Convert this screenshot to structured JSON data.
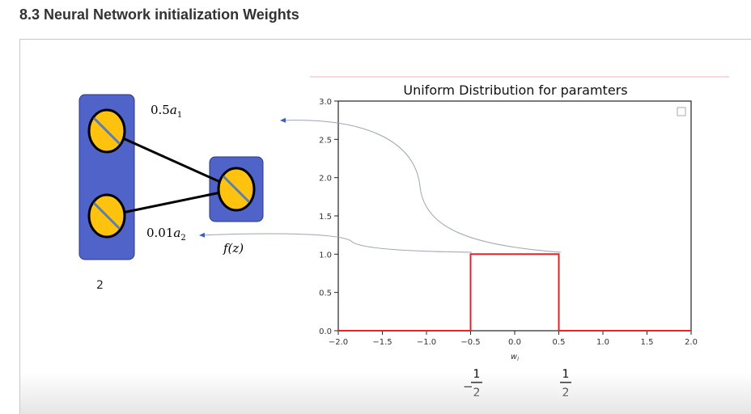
{
  "page": {
    "title": "8.3 Neural Network initialization Weights"
  },
  "network": {
    "input_count_label": "2",
    "edge_labels": [
      {
        "coef": "0.5",
        "var": "a",
        "sub": "1"
      },
      {
        "coef": "0.01",
        "var": "a",
        "sub": "2"
      }
    ],
    "output_label": "f(z)"
  },
  "chart_data": {
    "type": "line",
    "title": "Uniform Distribution for paramters",
    "xlabel": "w",
    "xlabel_subscript": "i",
    "ylabel": "",
    "xlim": [
      -2.0,
      2.0
    ],
    "ylim": [
      0.0,
      3.0
    ],
    "xticks": [
      "−2.0",
      "−1.5",
      "−1.0",
      "−0.5",
      "0.0",
      "0.5",
      "1.0",
      "1.5",
      "2.0"
    ],
    "yticks": [
      "0.0",
      "0.5",
      "1.0",
      "1.5",
      "2.0",
      "2.5",
      "3.0"
    ],
    "series": [
      {
        "color": "#e0262b",
        "x": [
          -2.0,
          -0.5,
          -0.5,
          0.5,
          0.5,
          2.0
        ],
        "y": [
          0.0,
          0.0,
          1.0,
          1.0,
          0.0,
          0.0
        ]
      }
    ],
    "grid": false,
    "legend": "top-right (empty)",
    "annotations": [
      {
        "text": "−1/2",
        "sign": "−",
        "numerator": "1",
        "denominator": "2",
        "at_x": -0.5
      },
      {
        "text": "1/2",
        "sign": "",
        "numerator": "1",
        "denominator": "2",
        "at_x": 0.5
      }
    ]
  },
  "colors": {
    "neuron_fill": "#ffc20e",
    "layer_box": "#4f63c9",
    "line_red": "#e0262b",
    "arrow": "#9aa3b8"
  }
}
